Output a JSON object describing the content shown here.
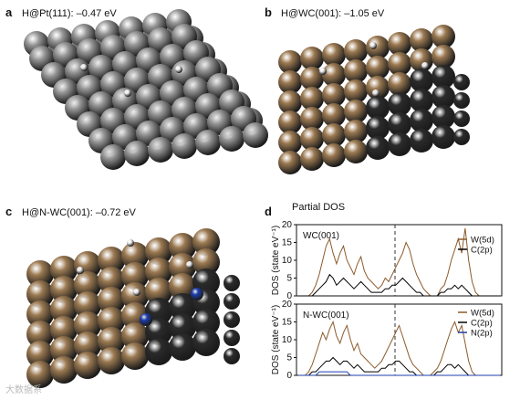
{
  "panels": {
    "a": {
      "letter": "a",
      "title": "H@Pt(111): –0.47 eV"
    },
    "b": {
      "letter": "b",
      "title": "H@WC(001): –1.05 eV"
    },
    "c": {
      "letter": "c",
      "title": "H@N-WC(001): –0.72 eV"
    },
    "d": {
      "letter": "d",
      "title": "Partial DOS"
    }
  },
  "colors": {
    "pt": "#9a9a9a",
    "w": "#9c7a52",
    "c": "#2b2b2b",
    "n": "#1e3fb0",
    "h": "#f2f2f2",
    "w5d": "#8b5a2b",
    "c2p": "#000000",
    "n2p": "#1e3fb0"
  },
  "chart_data": [
    {
      "type": "line",
      "panel_label": "WC(001)",
      "ylabel": "DOS (state eV⁻¹)",
      "ylim": [
        0,
        20
      ],
      "yticks": [
        "0",
        "5",
        "10",
        "15",
        "20"
      ],
      "fermi_level": 0,
      "series": [
        {
          "name": "W(5d)",
          "color": "#8b5a2b",
          "values": [
            0,
            0,
            0,
            0,
            1,
            3,
            6,
            10,
            14,
            16,
            12,
            9,
            12,
            14,
            10,
            8,
            6,
            9,
            11,
            7,
            5,
            4,
            3,
            2,
            3,
            5,
            4,
            6,
            8,
            10,
            12,
            15,
            13,
            9,
            6,
            4,
            2,
            1,
            0,
            0,
            0,
            2,
            3,
            6,
            10,
            13,
            16,
            12,
            19,
            10,
            4,
            1,
            0,
            0,
            0,
            0,
            0,
            0,
            0
          ]
        },
        {
          "name": "C(2p)",
          "color": "#000000",
          "values": [
            0,
            0,
            0,
            0,
            0,
            1,
            2,
            3,
            4,
            6,
            5,
            3,
            4,
            5,
            4,
            3,
            2,
            3,
            4,
            3,
            2,
            1,
            1,
            1,
            1,
            2,
            2,
            3,
            3,
            4,
            5,
            4,
            3,
            2,
            1,
            1,
            0,
            0,
            0,
            0,
            0,
            1,
            1,
            2,
            2,
            3,
            2,
            3,
            2,
            1,
            0,
            0,
            0,
            0,
            0,
            0,
            0,
            0,
            0
          ]
        }
      ]
    },
    {
      "type": "line",
      "panel_label": "N-WC(001)",
      "ylabel": "DOS (state eV⁻¹)",
      "ylim": [
        0,
        20
      ],
      "yticks": [
        "0",
        "5",
        "10",
        "15",
        "20"
      ],
      "fermi_level": 0,
      "series": [
        {
          "name": "W(5d)",
          "color": "#8b5a2b",
          "values": [
            0,
            0,
            0,
            1,
            3,
            6,
            9,
            12,
            10,
            13,
            15,
            11,
            9,
            12,
            14,
            10,
            7,
            9,
            6,
            5,
            4,
            3,
            2,
            3,
            4,
            6,
            8,
            10,
            12,
            14,
            11,
            8,
            5,
            3,
            2,
            1,
            0,
            0,
            0,
            1,
            2,
            4,
            7,
            10,
            13,
            15,
            12,
            14,
            9,
            4,
            1,
            0,
            0,
            0,
            0,
            0,
            0,
            0,
            0
          ]
        },
        {
          "name": "C(2p)",
          "color": "#000000",
          "values": [
            0,
            0,
            0,
            0,
            1,
            1,
            2,
            3,
            4,
            4,
            5,
            4,
            3,
            4,
            4,
            3,
            2,
            3,
            2,
            1,
            1,
            1,
            1,
            1,
            2,
            2,
            3,
            3,
            4,
            4,
            3,
            2,
            1,
            1,
            0,
            0,
            0,
            0,
            0,
            0,
            1,
            1,
            2,
            3,
            3,
            2,
            3,
            2,
            1,
            0,
            0,
            0,
            0,
            0,
            0,
            0,
            0,
            0,
            0
          ]
        },
        {
          "name": "N(2p)",
          "color": "#1e3fb0",
          "values": [
            0,
            0,
            0,
            0,
            0,
            0,
            1,
            1,
            1,
            1,
            1,
            1,
            1,
            1,
            1,
            0,
            0,
            0,
            0,
            0,
            0,
            0,
            0,
            0,
            0,
            0,
            0,
            0,
            0,
            0,
            0,
            0,
            0,
            0,
            0,
            0,
            0,
            0,
            0,
            0,
            0,
            0,
            0,
            0,
            0,
            0,
            0,
            0,
            0,
            0,
            0,
            0,
            0,
            0,
            0,
            0,
            0,
            0,
            0
          ]
        }
      ]
    }
  ],
  "watermark": "大数据系"
}
